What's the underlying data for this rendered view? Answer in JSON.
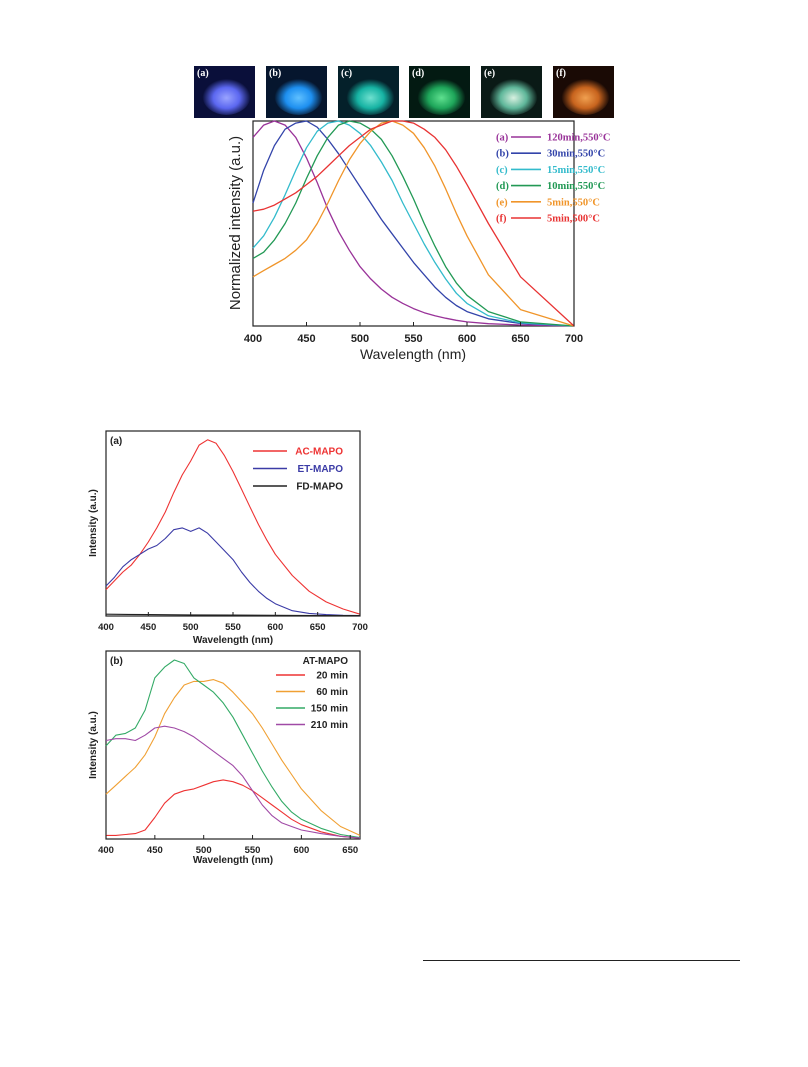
{
  "photos": [
    {
      "label": "(a)",
      "base": "#0a0f3a",
      "spot": "#5b67f0",
      "spot2": "#9aa4ff"
    },
    {
      "label": "(b)",
      "base": "#06162e",
      "spot": "#1d8ff0",
      "spot2": "#5fc0ff"
    },
    {
      "label": "(c)",
      "base": "#04202a",
      "spot": "#16b3a3",
      "spot2": "#6fe0cf"
    },
    {
      "label": "(d)",
      "base": "#031a12",
      "spot": "#1ea65a",
      "spot2": "#5fe08f"
    },
    {
      "label": "(e)",
      "base": "#0a1a16",
      "spot": "#5fb79a",
      "spot2": "#d8f0e0"
    },
    {
      "label": "(f)",
      "base": "#1a0a05",
      "spot": "#c8641e",
      "spot2": "#f0a050"
    }
  ],
  "chart_data": [
    {
      "type": "line",
      "xlabel": "Wavelength (nm)",
      "ylabel": "Normalized intensity (a.u.)",
      "xlim": [
        400,
        700
      ],
      "ylim": [
        0,
        1
      ],
      "xticks": [
        "400",
        "450",
        "500",
        "550",
        "600",
        "650",
        "700"
      ],
      "legend_position": "top-right",
      "series": [
        {
          "name": "(a)",
          "desc": "120min,550°C",
          "color": "#993399",
          "x": [
            400,
            410,
            420,
            430,
            440,
            450,
            460,
            470,
            480,
            490,
            500,
            510,
            520,
            530,
            540,
            550,
            560,
            570,
            580,
            590,
            600,
            620,
            650,
            700
          ],
          "y": [
            0.92,
            0.98,
            1.0,
            0.98,
            0.92,
            0.82,
            0.7,
            0.57,
            0.46,
            0.37,
            0.29,
            0.23,
            0.18,
            0.14,
            0.11,
            0.085,
            0.065,
            0.05,
            0.038,
            0.028,
            0.02,
            0.011,
            0.005,
            0.0
          ]
        },
        {
          "name": "(b)",
          "desc": "30min,550°C",
          "color": "#3344aa",
          "x": [
            400,
            410,
            420,
            430,
            440,
            450,
            460,
            470,
            480,
            490,
            500,
            510,
            520,
            530,
            540,
            550,
            560,
            570,
            580,
            590,
            600,
            620,
            650,
            700
          ],
          "y": [
            0.6,
            0.76,
            0.88,
            0.96,
            0.99,
            1.0,
            0.97,
            0.91,
            0.84,
            0.76,
            0.68,
            0.6,
            0.52,
            0.45,
            0.38,
            0.31,
            0.25,
            0.19,
            0.14,
            0.1,
            0.07,
            0.035,
            0.012,
            0.0
          ]
        },
        {
          "name": "(c)",
          "desc": "15min,550°C",
          "color": "#33bbcc",
          "x": [
            400,
            410,
            420,
            430,
            440,
            450,
            460,
            470,
            480,
            490,
            500,
            510,
            520,
            530,
            540,
            550,
            560,
            570,
            580,
            590,
            600,
            620,
            650,
            700
          ],
          "y": [
            0.38,
            0.44,
            0.53,
            0.64,
            0.76,
            0.87,
            0.95,
            0.99,
            1.0,
            0.98,
            0.94,
            0.88,
            0.8,
            0.71,
            0.6,
            0.5,
            0.4,
            0.31,
            0.23,
            0.16,
            0.11,
            0.05,
            0.015,
            0.0
          ]
        },
        {
          "name": "(d)",
          "desc": "10min,550°C",
          "color": "#229955",
          "x": [
            400,
            410,
            420,
            430,
            440,
            450,
            460,
            470,
            480,
            490,
            500,
            510,
            520,
            530,
            540,
            550,
            560,
            570,
            580,
            590,
            600,
            620,
            650,
            700
          ],
          "y": [
            0.33,
            0.36,
            0.42,
            0.5,
            0.6,
            0.72,
            0.83,
            0.92,
            0.98,
            1.0,
            0.99,
            0.96,
            0.91,
            0.83,
            0.73,
            0.62,
            0.5,
            0.39,
            0.29,
            0.21,
            0.15,
            0.07,
            0.02,
            0.0
          ]
        },
        {
          "name": "(e)",
          "desc": "5min,550°C",
          "color": "#f0952a",
          "x": [
            400,
            410,
            420,
            430,
            440,
            450,
            460,
            470,
            480,
            490,
            500,
            510,
            520,
            530,
            540,
            550,
            560,
            570,
            580,
            590,
            600,
            620,
            650,
            700
          ],
          "y": [
            0.24,
            0.27,
            0.3,
            0.33,
            0.37,
            0.42,
            0.5,
            0.6,
            0.71,
            0.81,
            0.89,
            0.95,
            0.99,
            1.0,
            0.98,
            0.94,
            0.87,
            0.78,
            0.67,
            0.55,
            0.44,
            0.25,
            0.08,
            0.0
          ]
        },
        {
          "name": "(f)",
          "desc": "5min,500°C",
          "color": "#e83333",
          "x": [
            400,
            410,
            420,
            430,
            440,
            450,
            460,
            470,
            480,
            490,
            500,
            510,
            520,
            530,
            540,
            550,
            560,
            570,
            580,
            590,
            600,
            620,
            650,
            700
          ],
          "y": [
            0.56,
            0.57,
            0.59,
            0.62,
            0.65,
            0.69,
            0.73,
            0.78,
            0.83,
            0.88,
            0.92,
            0.96,
            0.98,
            1.0,
            1.0,
            0.99,
            0.96,
            0.92,
            0.86,
            0.78,
            0.69,
            0.5,
            0.24,
            0.0
          ]
        }
      ]
    },
    {
      "type": "line",
      "panel_label": "(a)",
      "xlabel": "Wavelength (nm)",
      "ylabel": "Intensity (a.u.)",
      "xlim": [
        400,
        700
      ],
      "ylim": [
        0,
        1.05
      ],
      "xticks": [
        "400",
        "450",
        "500",
        "550",
        "600",
        "650",
        "700"
      ],
      "legend_position": "top-right",
      "series": [
        {
          "name": "AC-MAPO",
          "color": "#ee3333",
          "x": [
            400,
            410,
            420,
            430,
            440,
            450,
            460,
            470,
            480,
            490,
            500,
            510,
            520,
            530,
            540,
            550,
            560,
            570,
            580,
            590,
            600,
            620,
            640,
            660,
            680,
            700
          ],
          "y": [
            0.15,
            0.2,
            0.25,
            0.29,
            0.35,
            0.42,
            0.5,
            0.59,
            0.7,
            0.8,
            0.88,
            0.97,
            1.0,
            0.98,
            0.91,
            0.82,
            0.72,
            0.62,
            0.52,
            0.43,
            0.35,
            0.23,
            0.14,
            0.08,
            0.04,
            0.01
          ]
        },
        {
          "name": "ET-MAPO",
          "color": "#3b3ba6",
          "x": [
            400,
            410,
            420,
            430,
            440,
            450,
            460,
            470,
            480,
            490,
            500,
            510,
            520,
            530,
            540,
            550,
            560,
            570,
            580,
            590,
            600,
            620,
            640,
            660,
            680,
            700
          ],
          "y": [
            0.17,
            0.22,
            0.28,
            0.32,
            0.35,
            0.38,
            0.4,
            0.44,
            0.49,
            0.5,
            0.48,
            0.5,
            0.47,
            0.42,
            0.37,
            0.32,
            0.25,
            0.19,
            0.14,
            0.1,
            0.07,
            0.03,
            0.015,
            0.008,
            0.004,
            0.002
          ]
        },
        {
          "name": "FD-MAPO",
          "color": "#222222",
          "x": [
            400,
            450,
            500,
            550,
            600,
            650,
            700
          ],
          "y": [
            0.01,
            0.008,
            0.006,
            0.005,
            0.004,
            0.003,
            0.002
          ]
        }
      ]
    },
    {
      "type": "line",
      "panel_label": "(b)",
      "title": "AT-MAPO",
      "xlabel": "Wavelength (nm)",
      "ylabel": "Intensity (a.u.)",
      "xlim": [
        400,
        660
      ],
      "ylim": [
        0,
        1.05
      ],
      "xticks": [
        "400",
        "450",
        "500",
        "550",
        "600",
        "650"
      ],
      "legend_position": "top-right",
      "series": [
        {
          "name": "20 min",
          "color": "#ee3333",
          "x": [
            400,
            410,
            420,
            430,
            440,
            450,
            460,
            470,
            480,
            490,
            500,
            510,
            520,
            530,
            540,
            550,
            560,
            570,
            580,
            590,
            600,
            620,
            640,
            660
          ],
          "y": [
            0.02,
            0.02,
            0.025,
            0.03,
            0.05,
            0.12,
            0.2,
            0.25,
            0.27,
            0.28,
            0.3,
            0.32,
            0.33,
            0.32,
            0.3,
            0.27,
            0.23,
            0.19,
            0.15,
            0.11,
            0.08,
            0.04,
            0.015,
            0.005
          ]
        },
        {
          "name": "60 min",
          "color": "#f0a033",
          "x": [
            400,
            410,
            420,
            430,
            440,
            450,
            460,
            470,
            480,
            490,
            500,
            510,
            520,
            530,
            540,
            550,
            560,
            570,
            580,
            590,
            600,
            620,
            640,
            660
          ],
          "y": [
            0.25,
            0.3,
            0.35,
            0.4,
            0.47,
            0.57,
            0.7,
            0.79,
            0.86,
            0.88,
            0.88,
            0.89,
            0.87,
            0.82,
            0.76,
            0.7,
            0.62,
            0.53,
            0.44,
            0.36,
            0.28,
            0.16,
            0.07,
            0.02
          ]
        },
        {
          "name": "150 min",
          "color": "#33aa66",
          "x": [
            400,
            410,
            420,
            430,
            440,
            450,
            460,
            470,
            480,
            490,
            500,
            510,
            520,
            530,
            540,
            550,
            560,
            570,
            580,
            590,
            600,
            620,
            640,
            660
          ],
          "y": [
            0.52,
            0.58,
            0.59,
            0.62,
            0.72,
            0.9,
            0.96,
            1.0,
            0.98,
            0.9,
            0.86,
            0.82,
            0.76,
            0.68,
            0.58,
            0.48,
            0.38,
            0.29,
            0.21,
            0.15,
            0.11,
            0.06,
            0.025,
            0.008
          ]
        },
        {
          "name": "210 min",
          "color": "#a04aa6",
          "x": [
            400,
            410,
            420,
            430,
            440,
            450,
            460,
            470,
            480,
            490,
            500,
            510,
            520,
            530,
            540,
            550,
            560,
            570,
            580,
            590,
            600,
            620,
            640,
            660
          ],
          "y": [
            0.55,
            0.56,
            0.56,
            0.55,
            0.58,
            0.62,
            0.63,
            0.62,
            0.6,
            0.57,
            0.53,
            0.49,
            0.45,
            0.41,
            0.35,
            0.27,
            0.19,
            0.13,
            0.09,
            0.07,
            0.05,
            0.03,
            0.015,
            0.005
          ]
        }
      ]
    }
  ]
}
